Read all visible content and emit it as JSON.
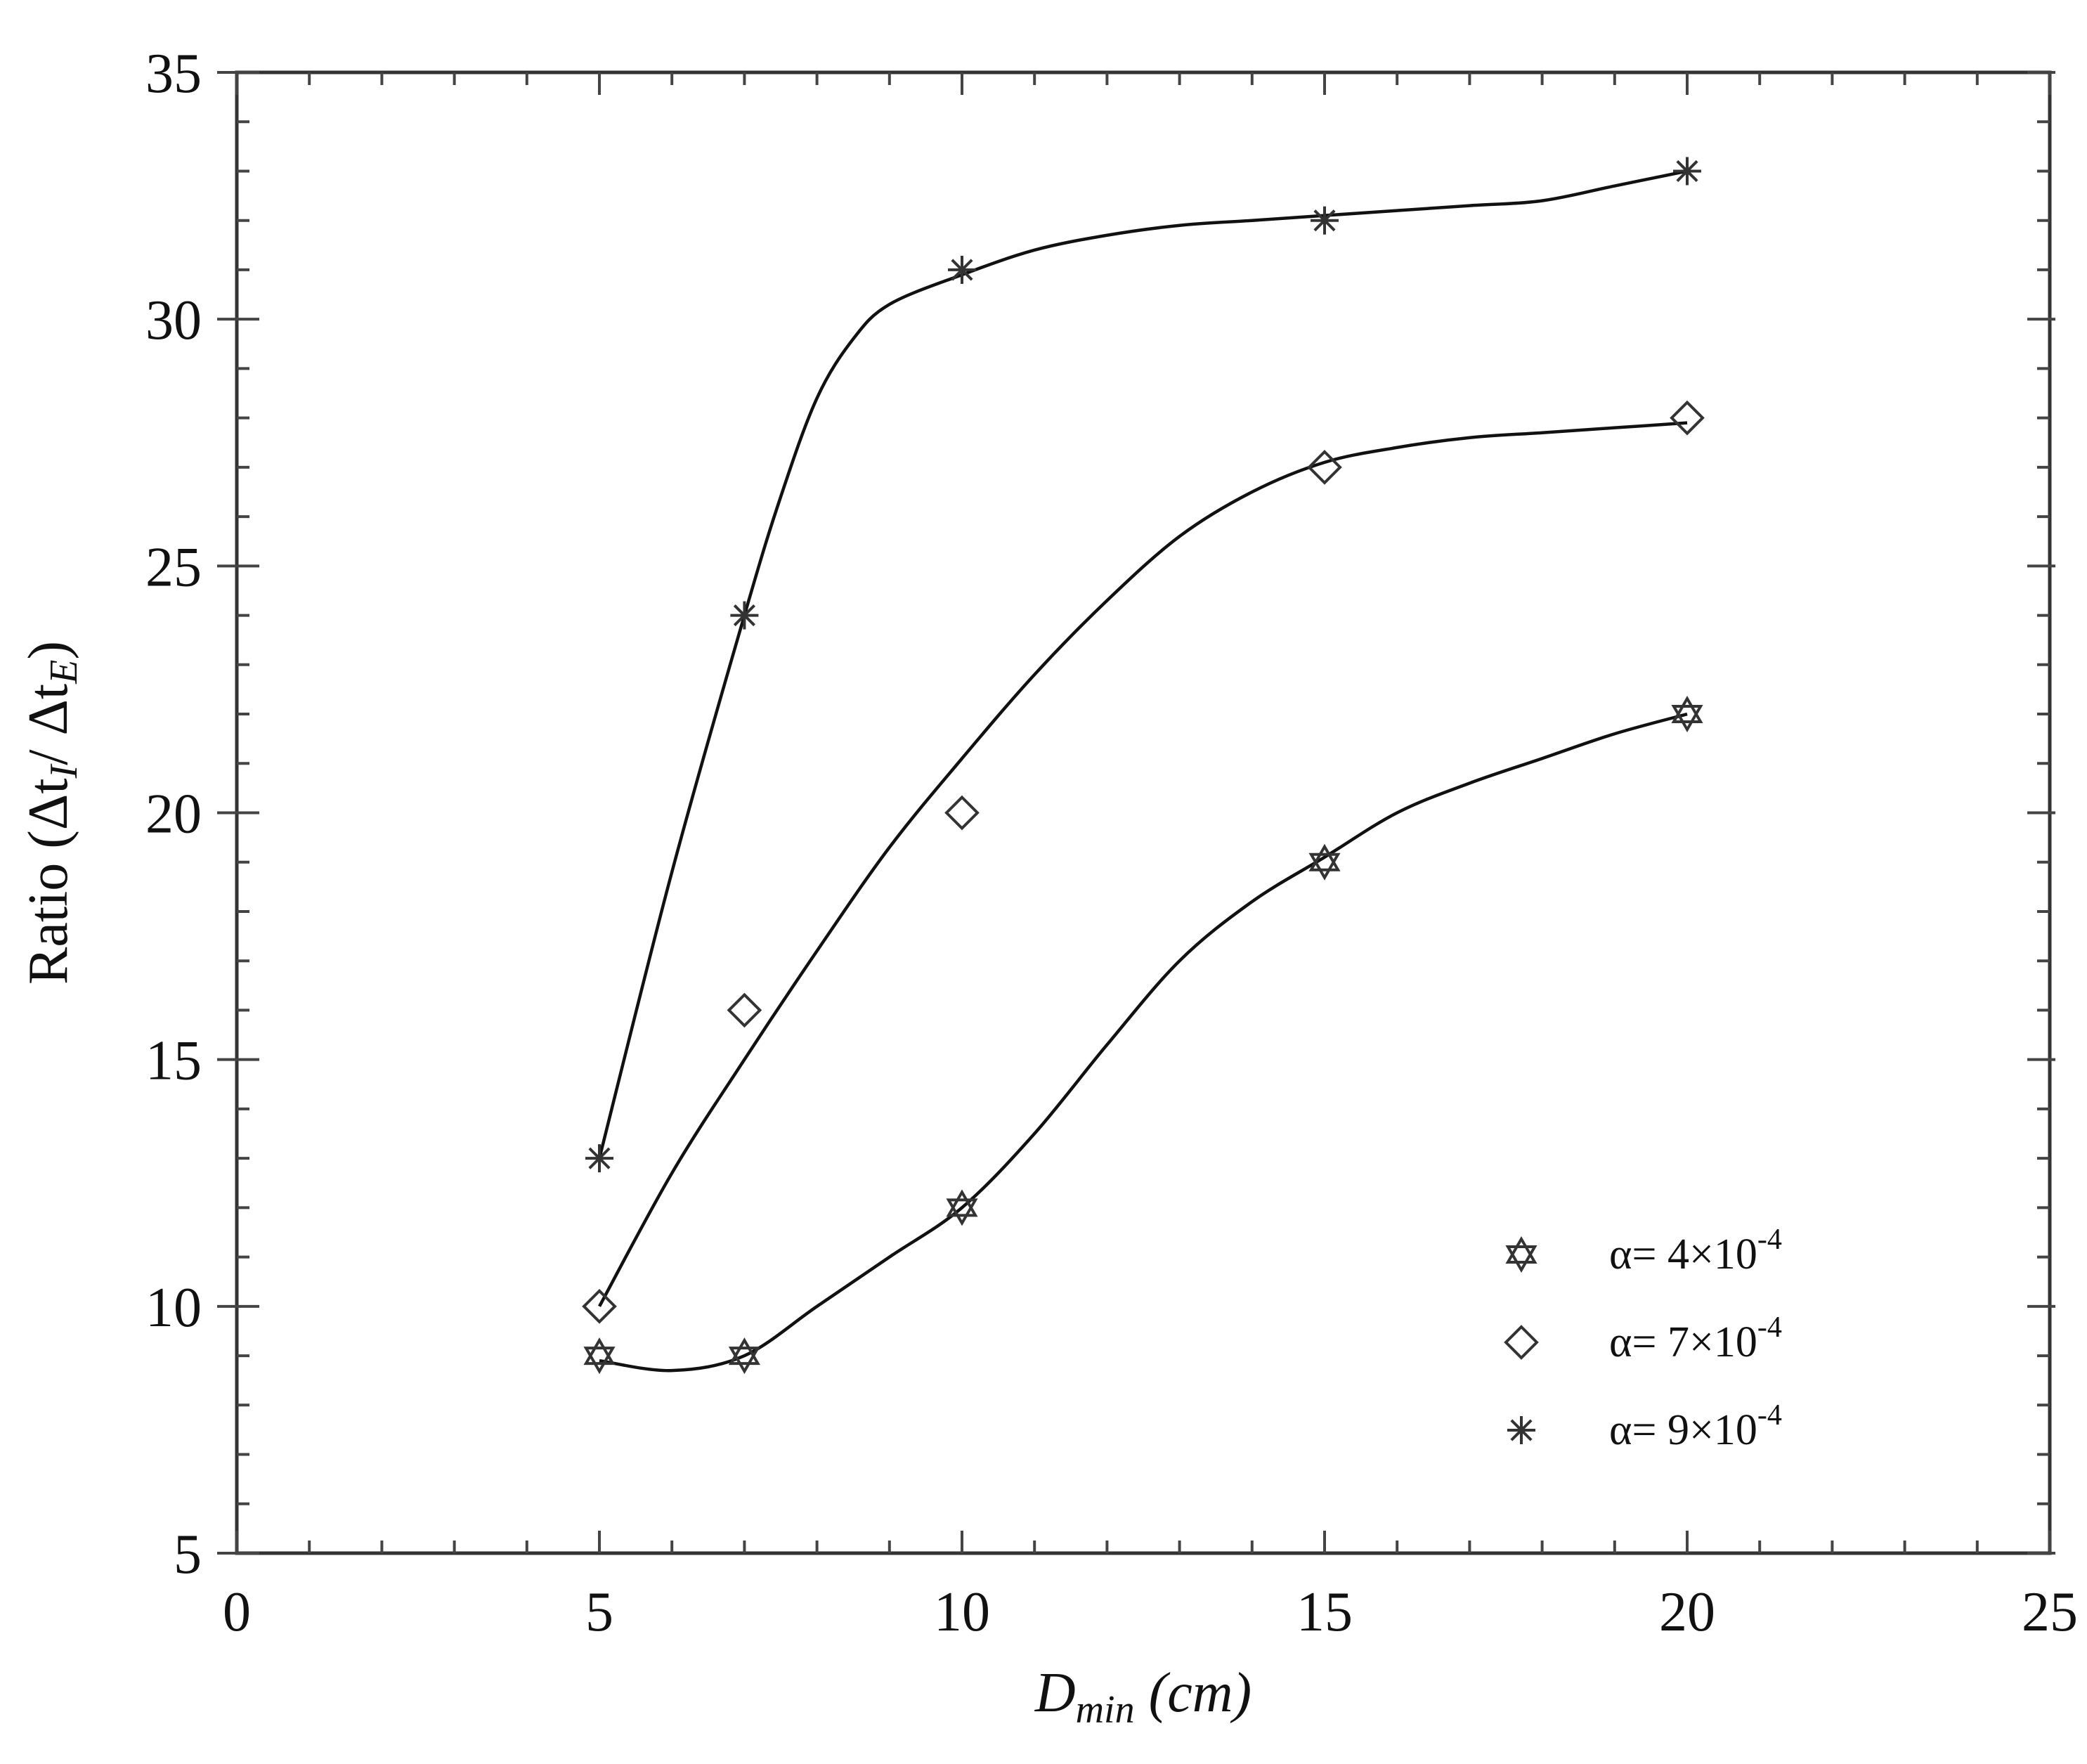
{
  "chart_data": {
    "type": "scatter",
    "title": "",
    "xlabel": {
      "main": "D",
      "sub": "min",
      "rest": " (cm)"
    },
    "ylabel": {
      "prefix": "Ratio (Δt",
      "sub1": "I",
      "mid": "/ Δt",
      "sub2": "E",
      "suffix": ")"
    },
    "xlim": [
      0,
      25
    ],
    "ylim": [
      5,
      35
    ],
    "x_ticks": [
      0,
      5,
      10,
      15,
      20,
      25
    ],
    "y_ticks": [
      5,
      10,
      15,
      20,
      25,
      30,
      35
    ],
    "grid": false,
    "legend_position": "bottom-right",
    "series": [
      {
        "name": "α= 4×10-4",
        "label_base": "α= 4×10",
        "label_exp": "-4",
        "marker": "star-of-david",
        "x": [
          5,
          7,
          10,
          15,
          20
        ],
        "y": [
          9,
          9,
          12,
          19,
          22
        ]
      },
      {
        "name": "α= 7×10-4",
        "label_base": "α= 7×10",
        "label_exp": "-4",
        "marker": "diamond",
        "x": [
          5,
          7,
          10,
          15,
          20
        ],
        "y": [
          10,
          16,
          20,
          27,
          28
        ]
      },
      {
        "name": "α= 9×10-4",
        "label_base": "α= 9×10",
        "label_exp": "-4",
        "marker": "asterisk",
        "x": [
          5,
          7,
          10,
          15,
          20
        ],
        "y": [
          13,
          24,
          31,
          32,
          33
        ]
      }
    ],
    "fit_curves": [
      {
        "series": 0,
        "x": [
          5,
          6,
          7,
          8,
          9,
          10,
          11,
          12,
          13,
          14,
          15,
          16,
          17,
          18,
          19,
          20
        ],
        "y": [
          8.9,
          8.7,
          9.0,
          10.0,
          11.0,
          12.0,
          13.5,
          15.3,
          17.0,
          18.2,
          19.1,
          20.0,
          20.6,
          21.1,
          21.6,
          22.0
        ]
      },
      {
        "series": 1,
        "x": [
          5,
          6,
          7,
          8,
          9,
          10,
          11,
          12,
          13,
          14,
          15,
          16,
          17,
          18,
          19,
          20
        ],
        "y": [
          10.0,
          12.7,
          15.0,
          17.2,
          19.3,
          21.1,
          22.8,
          24.3,
          25.6,
          26.5,
          27.1,
          27.4,
          27.6,
          27.7,
          27.8,
          27.9
        ]
      },
      {
        "series": 2,
        "x": [
          5,
          6,
          7,
          7.5,
          8,
          8.5,
          9,
          10,
          11,
          12,
          13,
          14,
          15,
          16,
          17,
          18,
          19,
          20
        ],
        "y": [
          13.0,
          18.8,
          24.0,
          26.4,
          28.4,
          29.6,
          30.3,
          30.9,
          31.4,
          31.7,
          31.9,
          32.0,
          32.1,
          32.2,
          32.3,
          32.4,
          32.7,
          33.0
        ]
      }
    ]
  }
}
